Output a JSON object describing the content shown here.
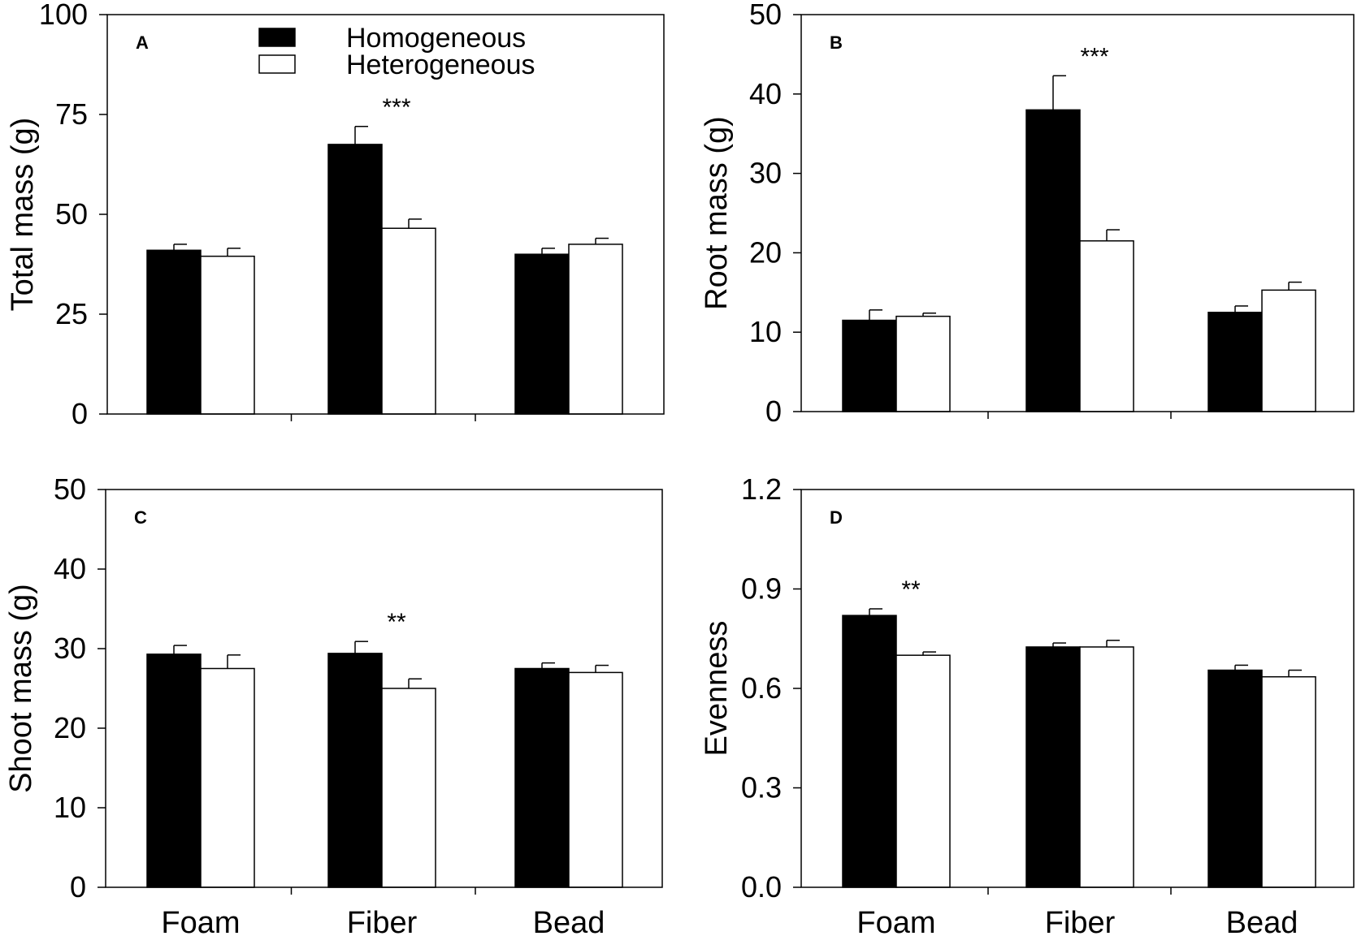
{
  "legend": {
    "homogeneous": "Homogeneous",
    "heterogeneous": "Heterogeneous"
  },
  "chart_data": [
    {
      "type": "bar",
      "panel_label": "A",
      "ylabel": "Total mass (g)",
      "ylim": [
        0,
        100
      ],
      "yticks": [
        0,
        25,
        50,
        75,
        100
      ],
      "categories": [
        "Foam",
        "Fiber",
        "Bead"
      ],
      "series": [
        {
          "name": "Homogeneous",
          "color": "#000000",
          "values": [
            41,
            67.5,
            40
          ],
          "errors": [
            1.5,
            4.5,
            1.5
          ]
        },
        {
          "name": "Heterogeneous",
          "color": "#ffffff",
          "values": [
            39.5,
            46.5,
            42.5
          ],
          "errors": [
            2,
            2.3,
            1.5
          ]
        }
      ],
      "significance": [
        {
          "category": "Fiber",
          "label": "***"
        }
      ]
    },
    {
      "type": "bar",
      "panel_label": "B",
      "ylabel": "Root mass (g)",
      "ylim": [
        0,
        50
      ],
      "yticks": [
        0,
        10,
        20,
        30,
        40,
        50
      ],
      "categories": [
        "Foam",
        "Fiber",
        "Bead"
      ],
      "series": [
        {
          "name": "Homogeneous",
          "color": "#000000",
          "values": [
            11.5,
            38,
            12.5
          ],
          "errors": [
            1.3,
            4.3,
            0.8
          ]
        },
        {
          "name": "Heterogeneous",
          "color": "#ffffff",
          "values": [
            12,
            21.5,
            15.3
          ],
          "errors": [
            0.4,
            1.4,
            1
          ]
        }
      ],
      "significance": [
        {
          "category": "Fiber",
          "label": "***"
        }
      ]
    },
    {
      "type": "bar",
      "panel_label": "C",
      "ylabel": "Shoot mass (g)",
      "ylim": [
        0,
        50
      ],
      "yticks": [
        0,
        10,
        20,
        30,
        40,
        50
      ],
      "categories": [
        "Foam",
        "Fiber",
        "Bead"
      ],
      "series": [
        {
          "name": "Homogeneous",
          "color": "#000000",
          "values": [
            29.3,
            29.4,
            27.5
          ],
          "errors": [
            1.1,
            1.5,
            0.7
          ]
        },
        {
          "name": "Heterogeneous",
          "color": "#ffffff",
          "values": [
            27.5,
            25,
            27
          ],
          "errors": [
            1.7,
            1.2,
            0.9
          ]
        }
      ],
      "significance": [
        {
          "category": "Fiber",
          "label": "**"
        }
      ]
    },
    {
      "type": "bar",
      "panel_label": "D",
      "ylabel": "Evenness",
      "ylim": [
        0,
        1.2
      ],
      "yticks": [
        "0.0",
        "0.3",
        "0.6",
        "0.9",
        "1.2"
      ],
      "categories": [
        "Foam",
        "Fiber",
        "Bead"
      ],
      "series": [
        {
          "name": "Homogeneous",
          "color": "#000000",
          "values": [
            0.82,
            0.725,
            0.655
          ],
          "errors": [
            0.02,
            0.012,
            0.015
          ]
        },
        {
          "name": "Heterogeneous",
          "color": "#ffffff",
          "values": [
            0.7,
            0.725,
            0.635
          ],
          "errors": [
            0.01,
            0.02,
            0.02
          ]
        }
      ],
      "significance": [
        {
          "category": "Foam",
          "label": "**"
        }
      ]
    }
  ]
}
